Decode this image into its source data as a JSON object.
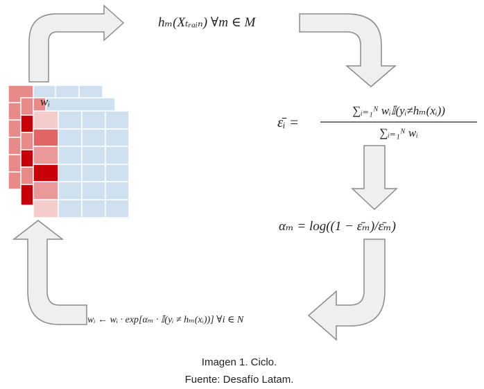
{
  "diagram": {
    "weight_label": "wᵢ",
    "steps": [
      "hₘ(Xₜᵣₐᵢₙ)   ∀m ∈ M",
      {
        "left": "ε̄ᵢ =",
        "numerator": "∑ᵢ₌₁ᴺ wᵢ𝕀(yᵢ≠hₘ(xᵢ))",
        "denominator": "∑ᵢ₌₁ᴺ wᵢ"
      },
      "αₘ = log((1 − ε̄ₘ)/ε̄ₘ)",
      "wᵢ ← wᵢ · exp[αₘ · 𝕀(yᵢ ≠ hₘ(xᵢ))]   ∀i ∈ N"
    ]
  },
  "caption": {
    "title": "Imagen 1. Ciclo.",
    "source": "Fuente: Desafío Latam."
  }
}
